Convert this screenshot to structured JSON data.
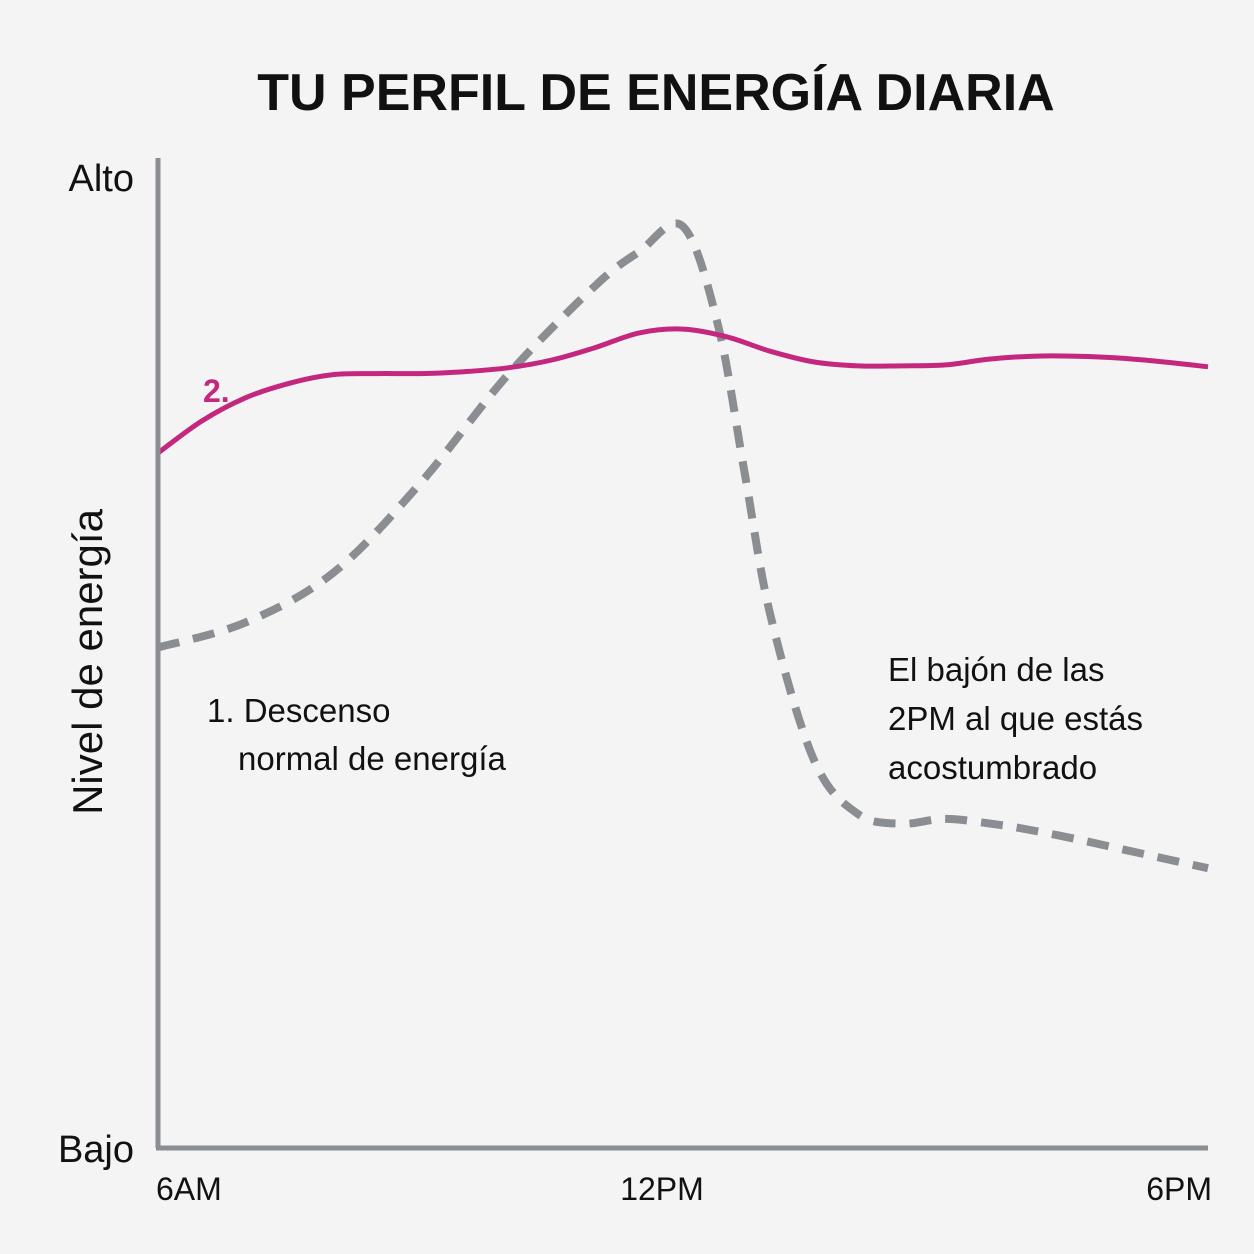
{
  "chart_data": {
    "type": "line",
    "title": "TU PERFIL DE ENERGÍA DIARIA",
    "xlabel": "",
    "ylabel": "Nivel de energía",
    "x_ticks": [
      "6AM",
      "12PM",
      "6PM"
    ],
    "y_ticks": [
      "Bajo",
      "Alto"
    ],
    "xlim": [
      6,
      18
    ],
    "ylim": [
      0,
      100
    ],
    "grid": false,
    "series": [
      {
        "name": "",
        "style": "dashed",
        "color": "#8a8d91",
        "x": [
          6.0,
          7.0,
          8.0,
          9.0,
          10.0,
          11.0,
          11.5,
          12.0,
          12.4,
          12.7,
          13.0,
          13.5,
          14.0,
          14.5,
          15.0,
          15.6,
          16.0,
          16.5,
          17.0,
          17.5,
          18.0
        ],
        "y": [
          51.7,
          54.3,
          59.4,
          68.7,
          79.9,
          89.1,
          92.6,
          95.2,
          85.0,
          70.0,
          55.0,
          40.0,
          34.5,
          33.5,
          34.0,
          33.4,
          32.8,
          31.9,
          30.9,
          29.9,
          28.9
        ]
      },
      {
        "name": "",
        "style": "solid",
        "color": "#c4287e",
        "x": [
          6.0,
          6.5,
          7.0,
          7.5,
          8.0,
          8.5,
          9.0,
          9.5,
          10.0,
          10.5,
          11.0,
          11.5,
          12.0,
          12.5,
          13.0,
          13.5,
          14.0,
          14.5,
          15.0,
          15.5,
          16.0,
          16.5,
          17.0,
          17.5,
          18.0
        ],
        "y": [
          71.8,
          75.1,
          77.5,
          79.0,
          79.9,
          80.0,
          80.0,
          80.2,
          80.6,
          81.4,
          82.7,
          84.2,
          84.6,
          83.8,
          82.3,
          81.2,
          80.8,
          80.8,
          80.9,
          81.5,
          81.8,
          81.8,
          81.6,
          81.2,
          80.7
        ]
      }
    ],
    "annotations": [
      {
        "id": "label-2",
        "text": "2.",
        "color": "#c4287e"
      },
      {
        "id": "label-1",
        "lines": [
          "1. Descenso",
          "normal de energía"
        ]
      },
      {
        "id": "label-dip",
        "lines": [
          "El bajón de las",
          "2PM al que estás",
          "acostumbrado"
        ]
      }
    ],
    "colors": {
      "axis": "#8a8d91",
      "text": "#111111",
      "background": "#f4f4f4"
    }
  }
}
